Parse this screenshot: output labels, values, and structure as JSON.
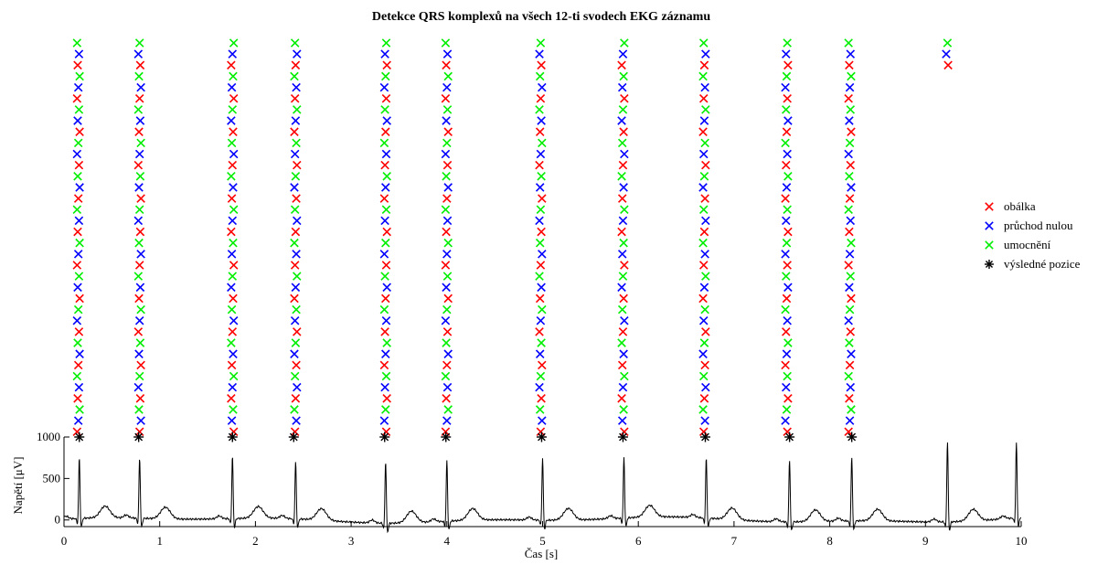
{
  "chart_data": {
    "type": "line",
    "title": "Detekce QRS komplexů na všech 12-ti svodech EKG záznamu",
    "xlabel": "Čas [s]",
    "ylabel": "Napětí [μV]",
    "xlim": [
      0,
      10
    ],
    "ylim": [
      -80,
      1000
    ],
    "x_ticks": [
      0,
      1,
      2,
      3,
      4,
      5,
      6,
      7,
      8,
      9,
      10
    ],
    "x_tick_labels": [
      "0",
      "1",
      "2",
      "3",
      "4",
      "5",
      "6",
      "7",
      "8",
      "9",
      "10"
    ],
    "y_ticks": [
      0,
      500,
      1000
    ],
    "y_tick_labels": [
      "0",
      "500",
      "1000"
    ],
    "grid": false,
    "legend_placement": "right",
    "legend": [
      {
        "label": "obálka",
        "marker": "x",
        "color": "#ff0000"
      },
      {
        "label": "průchod nulou",
        "marker": "x",
        "color": "#0000ff"
      },
      {
        "label": "umocnění",
        "marker": "x",
        "color": "#00ee00"
      },
      {
        "label": "výsledné pozice",
        "marker": "asterisk",
        "color": "#000000"
      }
    ],
    "colors": {
      "obalka": "#ff0000",
      "pruchod": "#0000ff",
      "umocneni": "#00ee00",
      "vysledne": "#000000",
      "ecg": "#000000"
    },
    "ecg_signal": {
      "name": "EKG",
      "baseline_uV": 0,
      "r_peaks": [
        {
          "t": 0.16,
          "amp": 740
        },
        {
          "t": 0.79,
          "amp": 740
        },
        {
          "t": 1.76,
          "amp": 760
        },
        {
          "t": 2.42,
          "amp": 700
        },
        {
          "t": 3.36,
          "amp": 760
        },
        {
          "t": 4.0,
          "amp": 740
        },
        {
          "t": 5.0,
          "amp": 760
        },
        {
          "t": 5.85,
          "amp": 740
        },
        {
          "t": 6.71,
          "amp": 740
        },
        {
          "t": 7.58,
          "amp": 760
        },
        {
          "t": 8.23,
          "amp": 780
        },
        {
          "t": 9.23,
          "amp": 980
        },
        {
          "t": 9.95,
          "amp": 920
        }
      ],
      "t_wave_amp_uV": 140,
      "t_wave_delay_s": 0.27
    },
    "final_positions": {
      "name": "výsledné pozice",
      "y_uV": 1000,
      "x": [
        0.16,
        0.78,
        1.76,
        2.4,
        3.35,
        3.99,
        4.99,
        5.84,
        6.7,
        7.58,
        8.23
      ]
    },
    "detection_columns": [
      {
        "x": 0.15,
        "leads": 12
      },
      {
        "x": 0.79,
        "leads": 12
      },
      {
        "x": 1.76,
        "leads": 12
      },
      {
        "x": 2.42,
        "leads": 12
      },
      {
        "x": 3.36,
        "leads": 12
      },
      {
        "x": 4.0,
        "leads": 12
      },
      {
        "x": 4.98,
        "leads": 12
      },
      {
        "x": 5.84,
        "leads": 12
      },
      {
        "x": 6.69,
        "leads": 12
      },
      {
        "x": 7.55,
        "leads": 12
      },
      {
        "x": 8.21,
        "leads": 12
      },
      {
        "x": 9.23,
        "leads": 1
      }
    ]
  }
}
